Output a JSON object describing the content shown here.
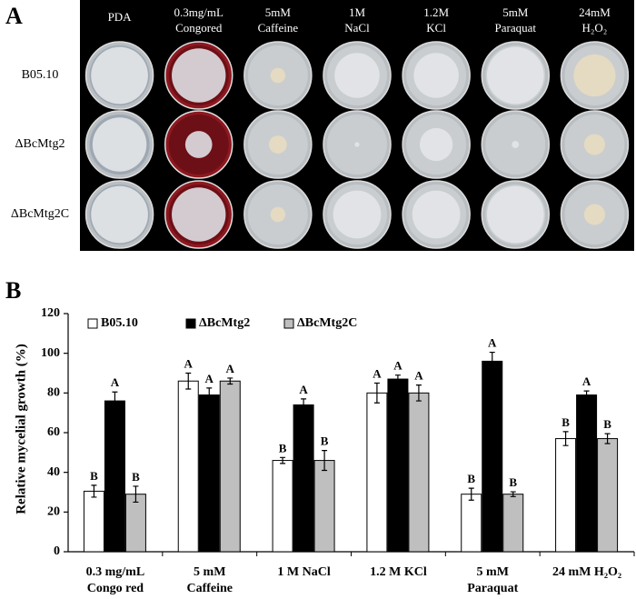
{
  "panel_a": {
    "label": "A",
    "columns": [
      [
        "PDA"
      ],
      [
        "0.3mg/mL",
        "Congored"
      ],
      [
        "5mM",
        "Caffeine"
      ],
      [
        "1M",
        "NaCl"
      ],
      [
        "1.2M",
        "KCl"
      ],
      [
        "5mM",
        "Paraquat"
      ],
      [
        "24mM",
        "H₂O₂"
      ]
    ],
    "rows": [
      "B05.10",
      "ΔBcMtg2",
      "ΔBcMtg2C"
    ]
  },
  "chart_data": {
    "type": "bar",
    "panel_label": "B",
    "ylabel": "Relative mycelial growth (%)",
    "categories": [
      [
        "0.3 mg/mL",
        "Congo red"
      ],
      [
        "5 mM",
        "Caffeine"
      ],
      [
        "1 M NaCl"
      ],
      [
        "1.2 M KCl"
      ],
      [
        "5 mM",
        "Paraquat"
      ],
      [
        "24 mM H₂O₂"
      ]
    ],
    "ylim": [
      0,
      120
    ],
    "yticks": [
      0,
      20,
      40,
      60,
      80,
      100,
      120
    ],
    "legend": "top-left",
    "series": [
      {
        "name": "B05.10",
        "color": "#ffffff",
        "values": [
          30.5,
          86,
          46,
          80,
          29,
          57
        ],
        "errors": [
          3,
          4,
          1.5,
          5,
          3,
          3.5
        ],
        "letters": [
          "B",
          "A",
          "B",
          "A",
          "B",
          "B"
        ]
      },
      {
        "name": "ΔBcMtg2",
        "color": "#000000",
        "values": [
          76,
          79,
          74,
          87,
          96,
          79
        ],
        "errors": [
          4.5,
          3.5,
          3,
          2,
          4.5,
          2
        ],
        "letters": [
          "A",
          "A",
          "A",
          "A",
          "A",
          "A"
        ]
      },
      {
        "name": "ΔBcMtg2C",
        "color": "#bfbfbf",
        "values": [
          29,
          86,
          46,
          80,
          29,
          57
        ],
        "errors": [
          4,
          1.5,
          5,
          4,
          1.2,
          2.5
        ],
        "letters": [
          "B",
          "A",
          "B",
          "A",
          "B",
          "B"
        ]
      }
    ]
  }
}
